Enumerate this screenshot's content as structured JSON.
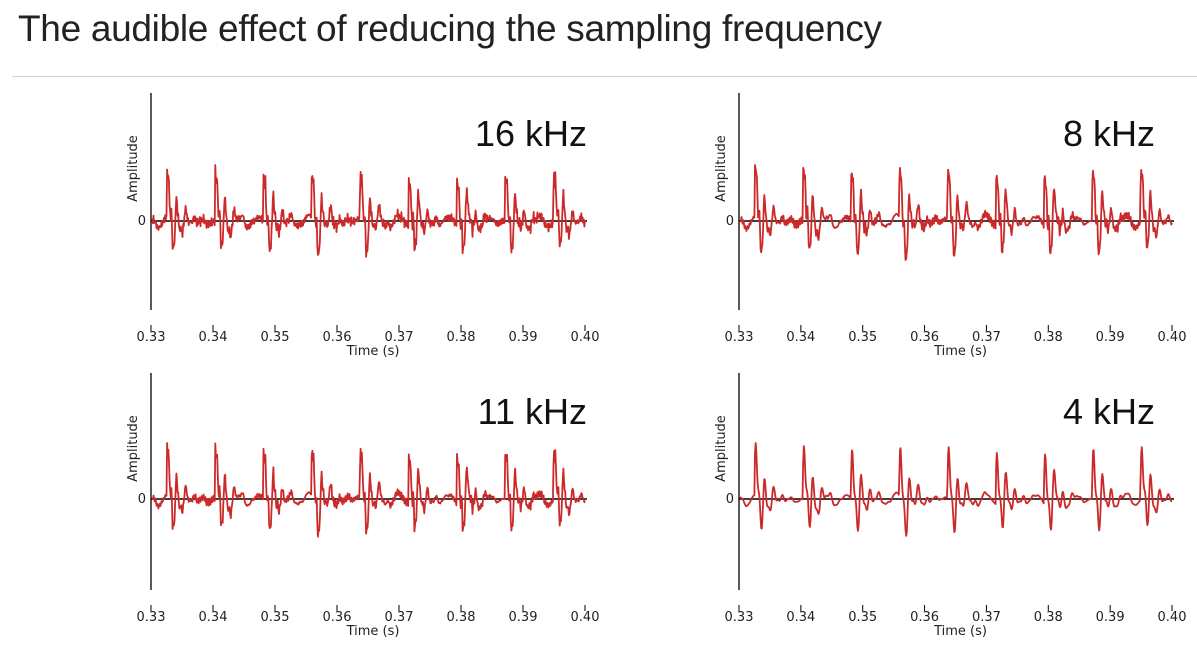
{
  "slide": {
    "title": "The audible effect of reducing the sampling frequency",
    "accent_color": "#cc2a2a"
  },
  "chart_data": [
    {
      "type": "line",
      "annotation": "16 kHz",
      "sampling_rate_khz": 16,
      "xlabel": "Time (s)",
      "ylabel": "Amplitude",
      "xlim": [
        0.33,
        0.4
      ],
      "x_ticks": [
        0.33,
        0.34,
        0.35,
        0.36,
        0.37,
        0.38,
        0.39,
        0.4
      ],
      "x_tick_labels": [
        "0.33",
        "0.34",
        "0.35",
        "0.36",
        "0.37",
        "0.38",
        "0.39",
        "0.40"
      ],
      "ylim": [
        -1,
        1
      ],
      "y_ticks": [
        0
      ],
      "y_tick_labels": [
        "0"
      ],
      "series": [
        {
          "name": "waveform",
          "color": "#cc2a2a"
        }
      ]
    },
    {
      "type": "line",
      "annotation": "8 kHz",
      "sampling_rate_khz": 8,
      "xlabel": "Time (s)",
      "ylabel": "Amplitude",
      "xlim": [
        0.33,
        0.4
      ],
      "x_ticks": [
        0.33,
        0.34,
        0.35,
        0.36,
        0.37,
        0.38,
        0.39,
        0.4
      ],
      "x_tick_labels": [
        "0.33",
        "0.34",
        "0.35",
        "0.36",
        "0.37",
        "0.38",
        "0.39",
        "0.40"
      ],
      "ylim": [
        -1,
        1
      ],
      "y_ticks": [
        0
      ],
      "y_tick_labels": [
        "0"
      ],
      "series": [
        {
          "name": "waveform",
          "color": "#cc2a2a"
        }
      ]
    },
    {
      "type": "line",
      "annotation": "11 kHz",
      "sampling_rate_khz": 11,
      "xlabel": "Time (s)",
      "ylabel": "Amplitude",
      "xlim": [
        0.33,
        0.4
      ],
      "x_ticks": [
        0.33,
        0.34,
        0.35,
        0.36,
        0.37,
        0.38,
        0.39,
        0.4
      ],
      "x_tick_labels": [
        "0.33",
        "0.34",
        "0.35",
        "0.36",
        "0.37",
        "0.38",
        "0.39",
        "0.40"
      ],
      "ylim": [
        -1,
        1
      ],
      "y_ticks": [
        0
      ],
      "y_tick_labels": [
        "0"
      ],
      "series": [
        {
          "name": "waveform",
          "color": "#cc2a2a"
        }
      ]
    },
    {
      "type": "line",
      "annotation": "4 kHz",
      "sampling_rate_khz": 4,
      "xlabel": "Time (s)",
      "ylabel": "Amplitude",
      "xlim": [
        0.33,
        0.4
      ],
      "x_ticks": [
        0.33,
        0.34,
        0.35,
        0.36,
        0.37,
        0.38,
        0.39,
        0.4
      ],
      "x_tick_labels": [
        "0.33",
        "0.34",
        "0.35",
        "0.36",
        "0.37",
        "0.38",
        "0.39",
        "0.40"
      ],
      "ylim": [
        -1,
        1
      ],
      "y_ticks": [
        0
      ],
      "y_tick_labels": [
        "0"
      ],
      "series": [
        {
          "name": "waveform",
          "color": "#cc2a2a"
        }
      ]
    }
  ]
}
